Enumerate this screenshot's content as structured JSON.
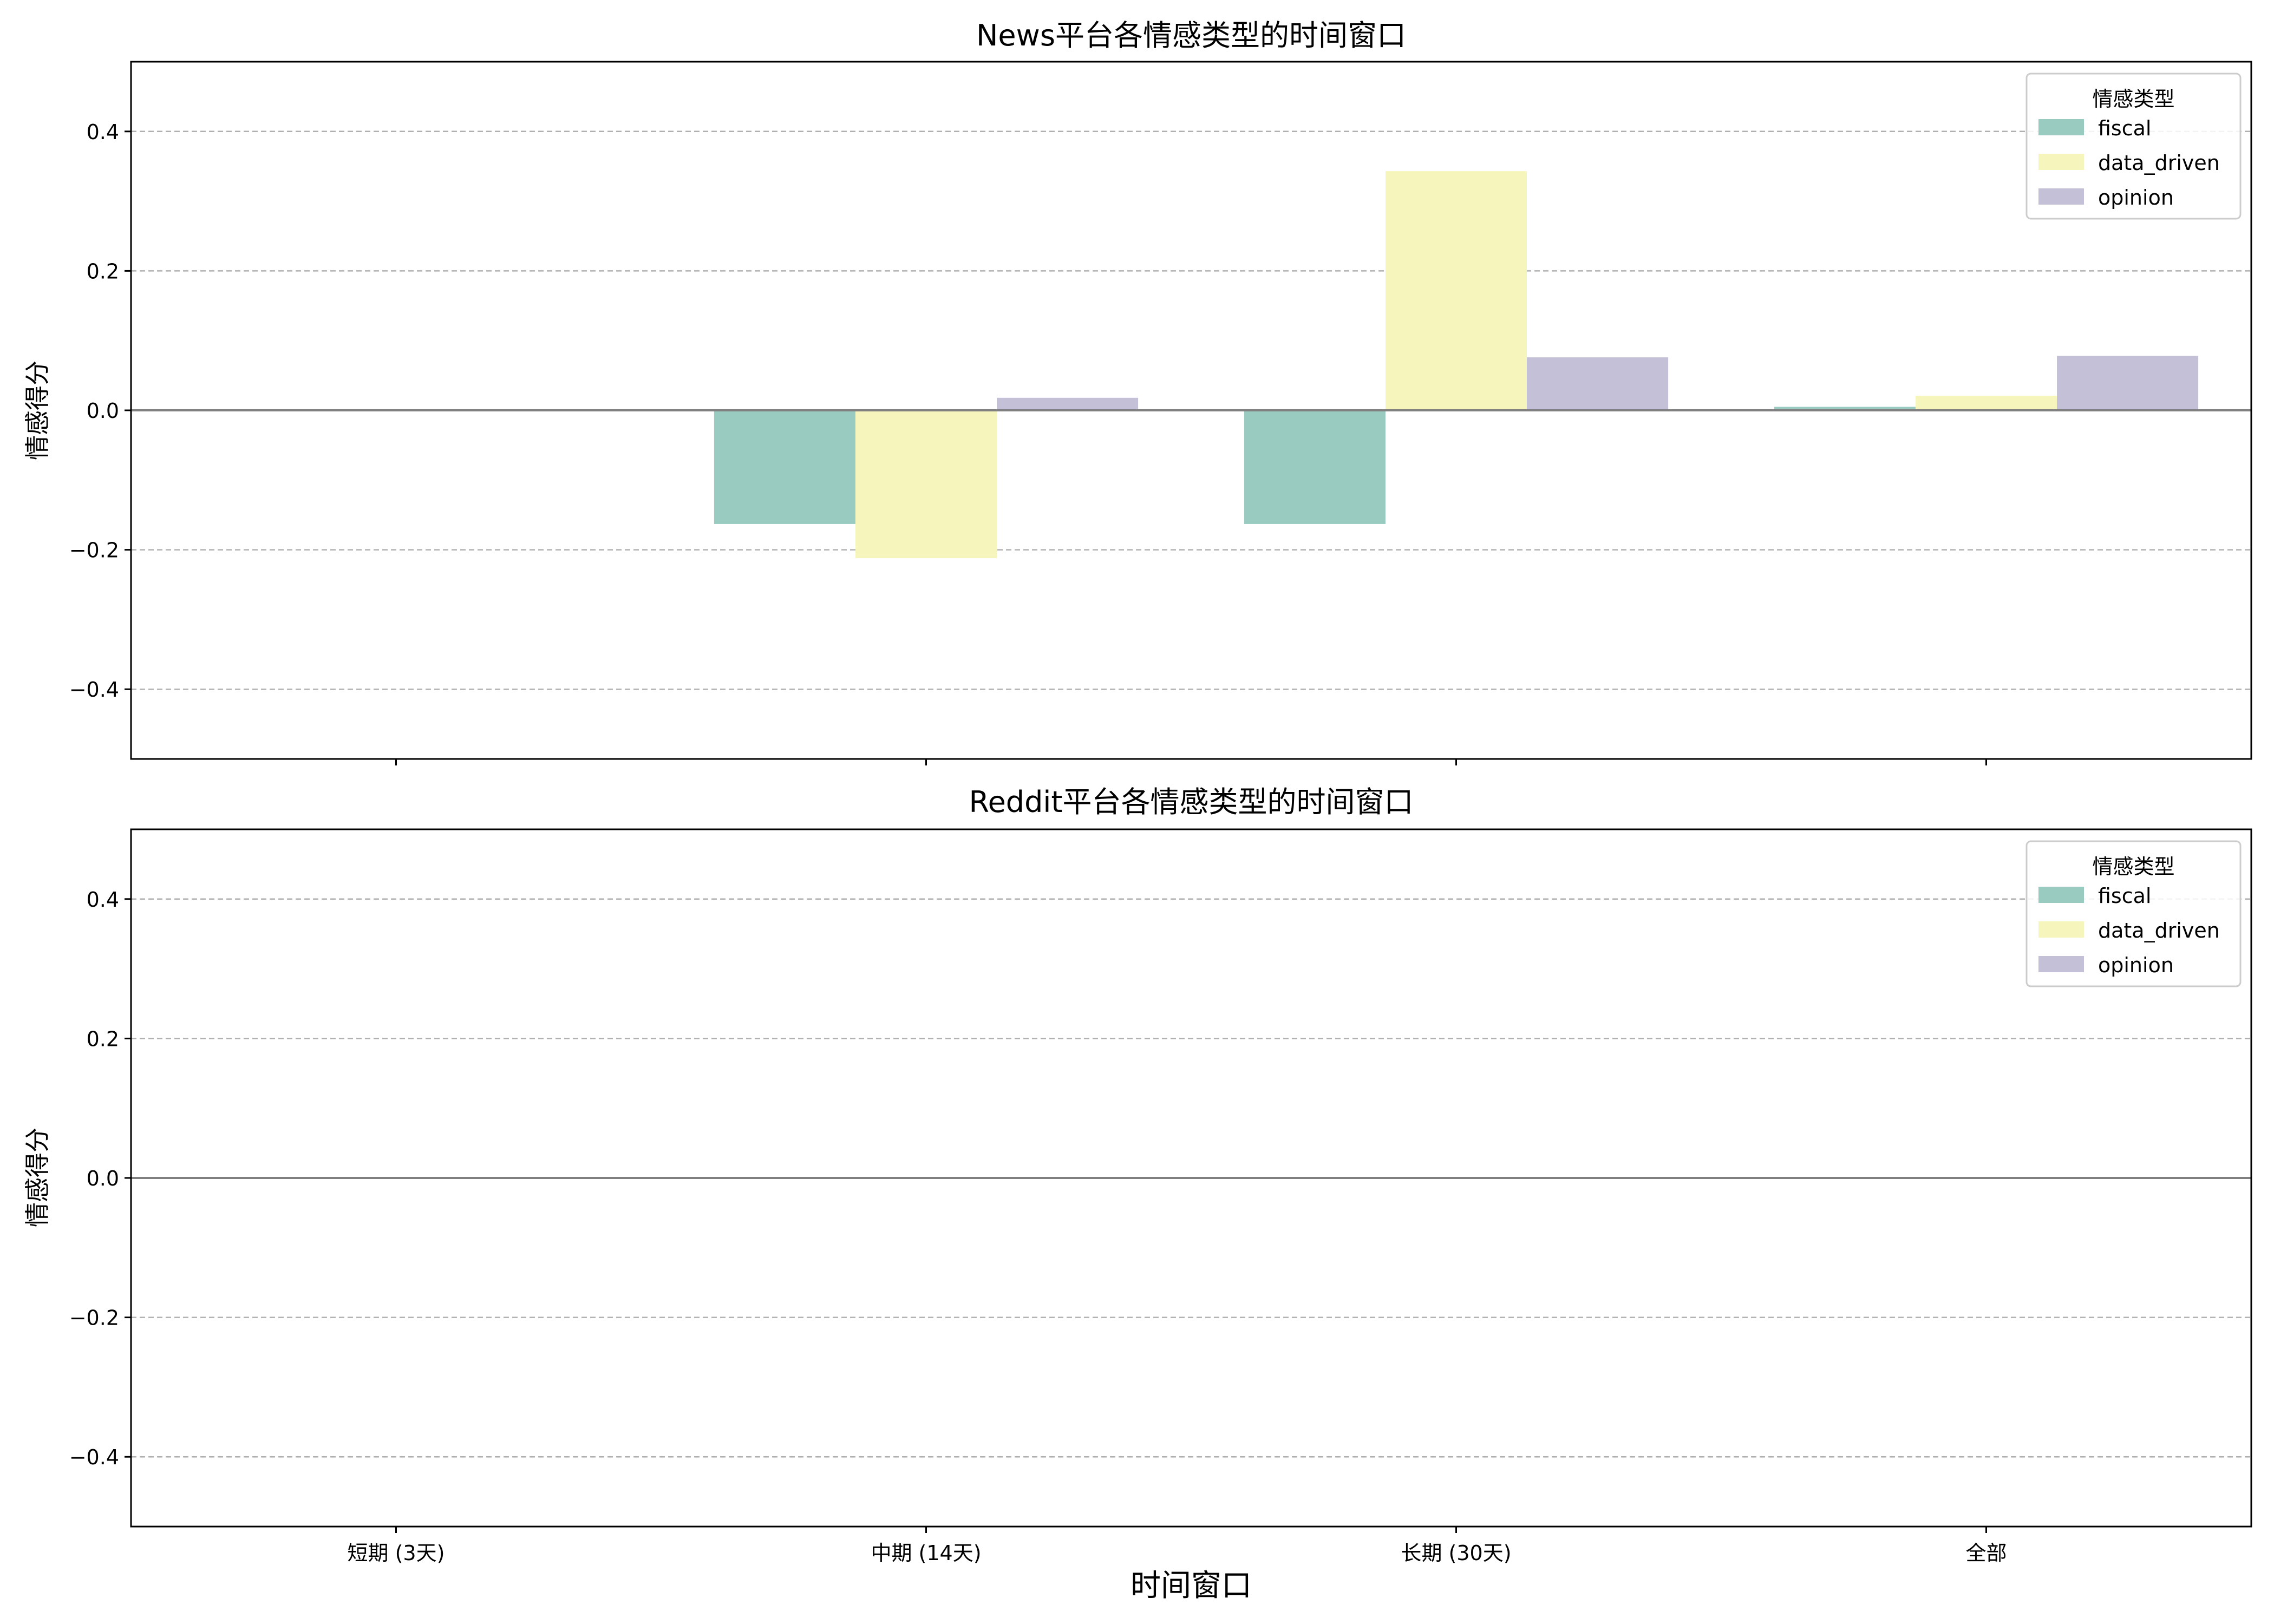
{
  "figure": {
    "xlabel": "时间窗口"
  },
  "chart_data": [
    {
      "type": "bar",
      "title": "News平台各情感类型的时间窗口",
      "ylabel": "情感得分",
      "xlabel": "",
      "categories": [
        "短期 (3天)",
        "中期 (14天)",
        "长期 (30天)",
        "全部"
      ],
      "ylim": [
        -0.5,
        0.5
      ],
      "yticks": [
        -0.4,
        -0.2,
        0.0,
        0.2,
        0.4
      ],
      "grid": "y-dashed",
      "legend": {
        "title": "情感类型",
        "placement": "top-right"
      },
      "series": [
        {
          "name": "fiscal",
          "color": "#99cbc1",
          "values": [
            0,
            -0.163,
            -0.163,
            0.005
          ]
        },
        {
          "name": "data_driven",
          "color": "#f6f5bb",
          "values": [
            0,
            -0.212,
            0.343,
            0.021
          ]
        },
        {
          "name": "opinion",
          "color": "#c3c0d7",
          "values": [
            0,
            0.018,
            0.076,
            0.078
          ]
        }
      ]
    },
    {
      "type": "bar",
      "title": "Reddit平台各情感类型的时间窗口",
      "ylabel": "情感得分",
      "xlabel": "时间窗口",
      "categories": [
        "短期 (3天)",
        "中期 (14天)",
        "长期 (30天)",
        "全部"
      ],
      "ylim": [
        -0.5,
        0.5
      ],
      "yticks": [
        -0.4,
        -0.2,
        0.0,
        0.2,
        0.4
      ],
      "grid": "y-dashed",
      "legend": {
        "title": "情感类型",
        "placement": "top-right"
      },
      "series": [
        {
          "name": "fiscal",
          "color": "#99cbc1",
          "values": [
            0,
            0,
            0,
            0
          ]
        },
        {
          "name": "data_driven",
          "color": "#f6f5bb",
          "values": [
            0,
            0,
            0,
            0
          ]
        },
        {
          "name": "opinion",
          "color": "#c3c0d7",
          "values": [
            0,
            0,
            0,
            0
          ]
        }
      ]
    }
  ]
}
